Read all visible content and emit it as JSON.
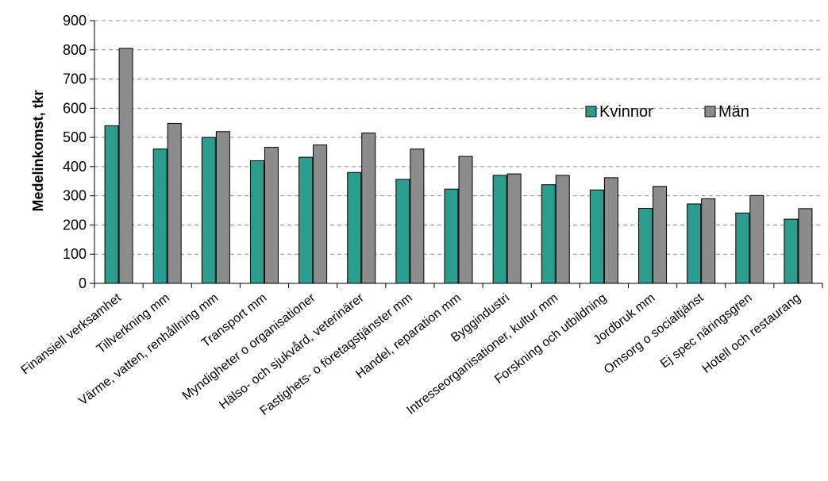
{
  "chart_data": {
    "type": "bar",
    "title": "",
    "xlabel": "",
    "ylabel": "Medelinkomst, tkr",
    "ylim": [
      0,
      900
    ],
    "yticks": [
      0,
      100,
      200,
      300,
      400,
      500,
      600,
      700,
      800,
      900
    ],
    "grid": "horizontal dashed",
    "legend_position": "top-right",
    "categories": [
      "Finansiell verksamhet",
      "Tillverkning mm",
      "Värme, vatten, renhållning mm",
      "Transport mm",
      "Myndigheter o organisationer",
      "Hälso- och sjukvård, veterinärer",
      "Fastighets- o företagstjänster mm",
      "Handel, reparation mm",
      "Byggindustri",
      "Intresseorganisationer, kultur mm",
      "Forskning och utbildning",
      "Jordbruk mm",
      "Omsorg o socialtjänst",
      "Ej spec näringsgren",
      "Hotell och restaurang"
    ],
    "series": [
      {
        "name": "Kvinnor",
        "color": "#2a9d8f",
        "values": [
          540,
          460,
          500,
          420,
          432,
          380,
          356,
          323,
          370,
          338,
          320,
          257,
          272,
          241,
          220
        ]
      },
      {
        "name": "Män",
        "color": "#8c8c8c",
        "values": [
          805,
          548,
          520,
          466,
          474,
          515,
          460,
          435,
          375,
          370,
          362,
          332,
          290,
          301,
          256
        ]
      }
    ]
  }
}
